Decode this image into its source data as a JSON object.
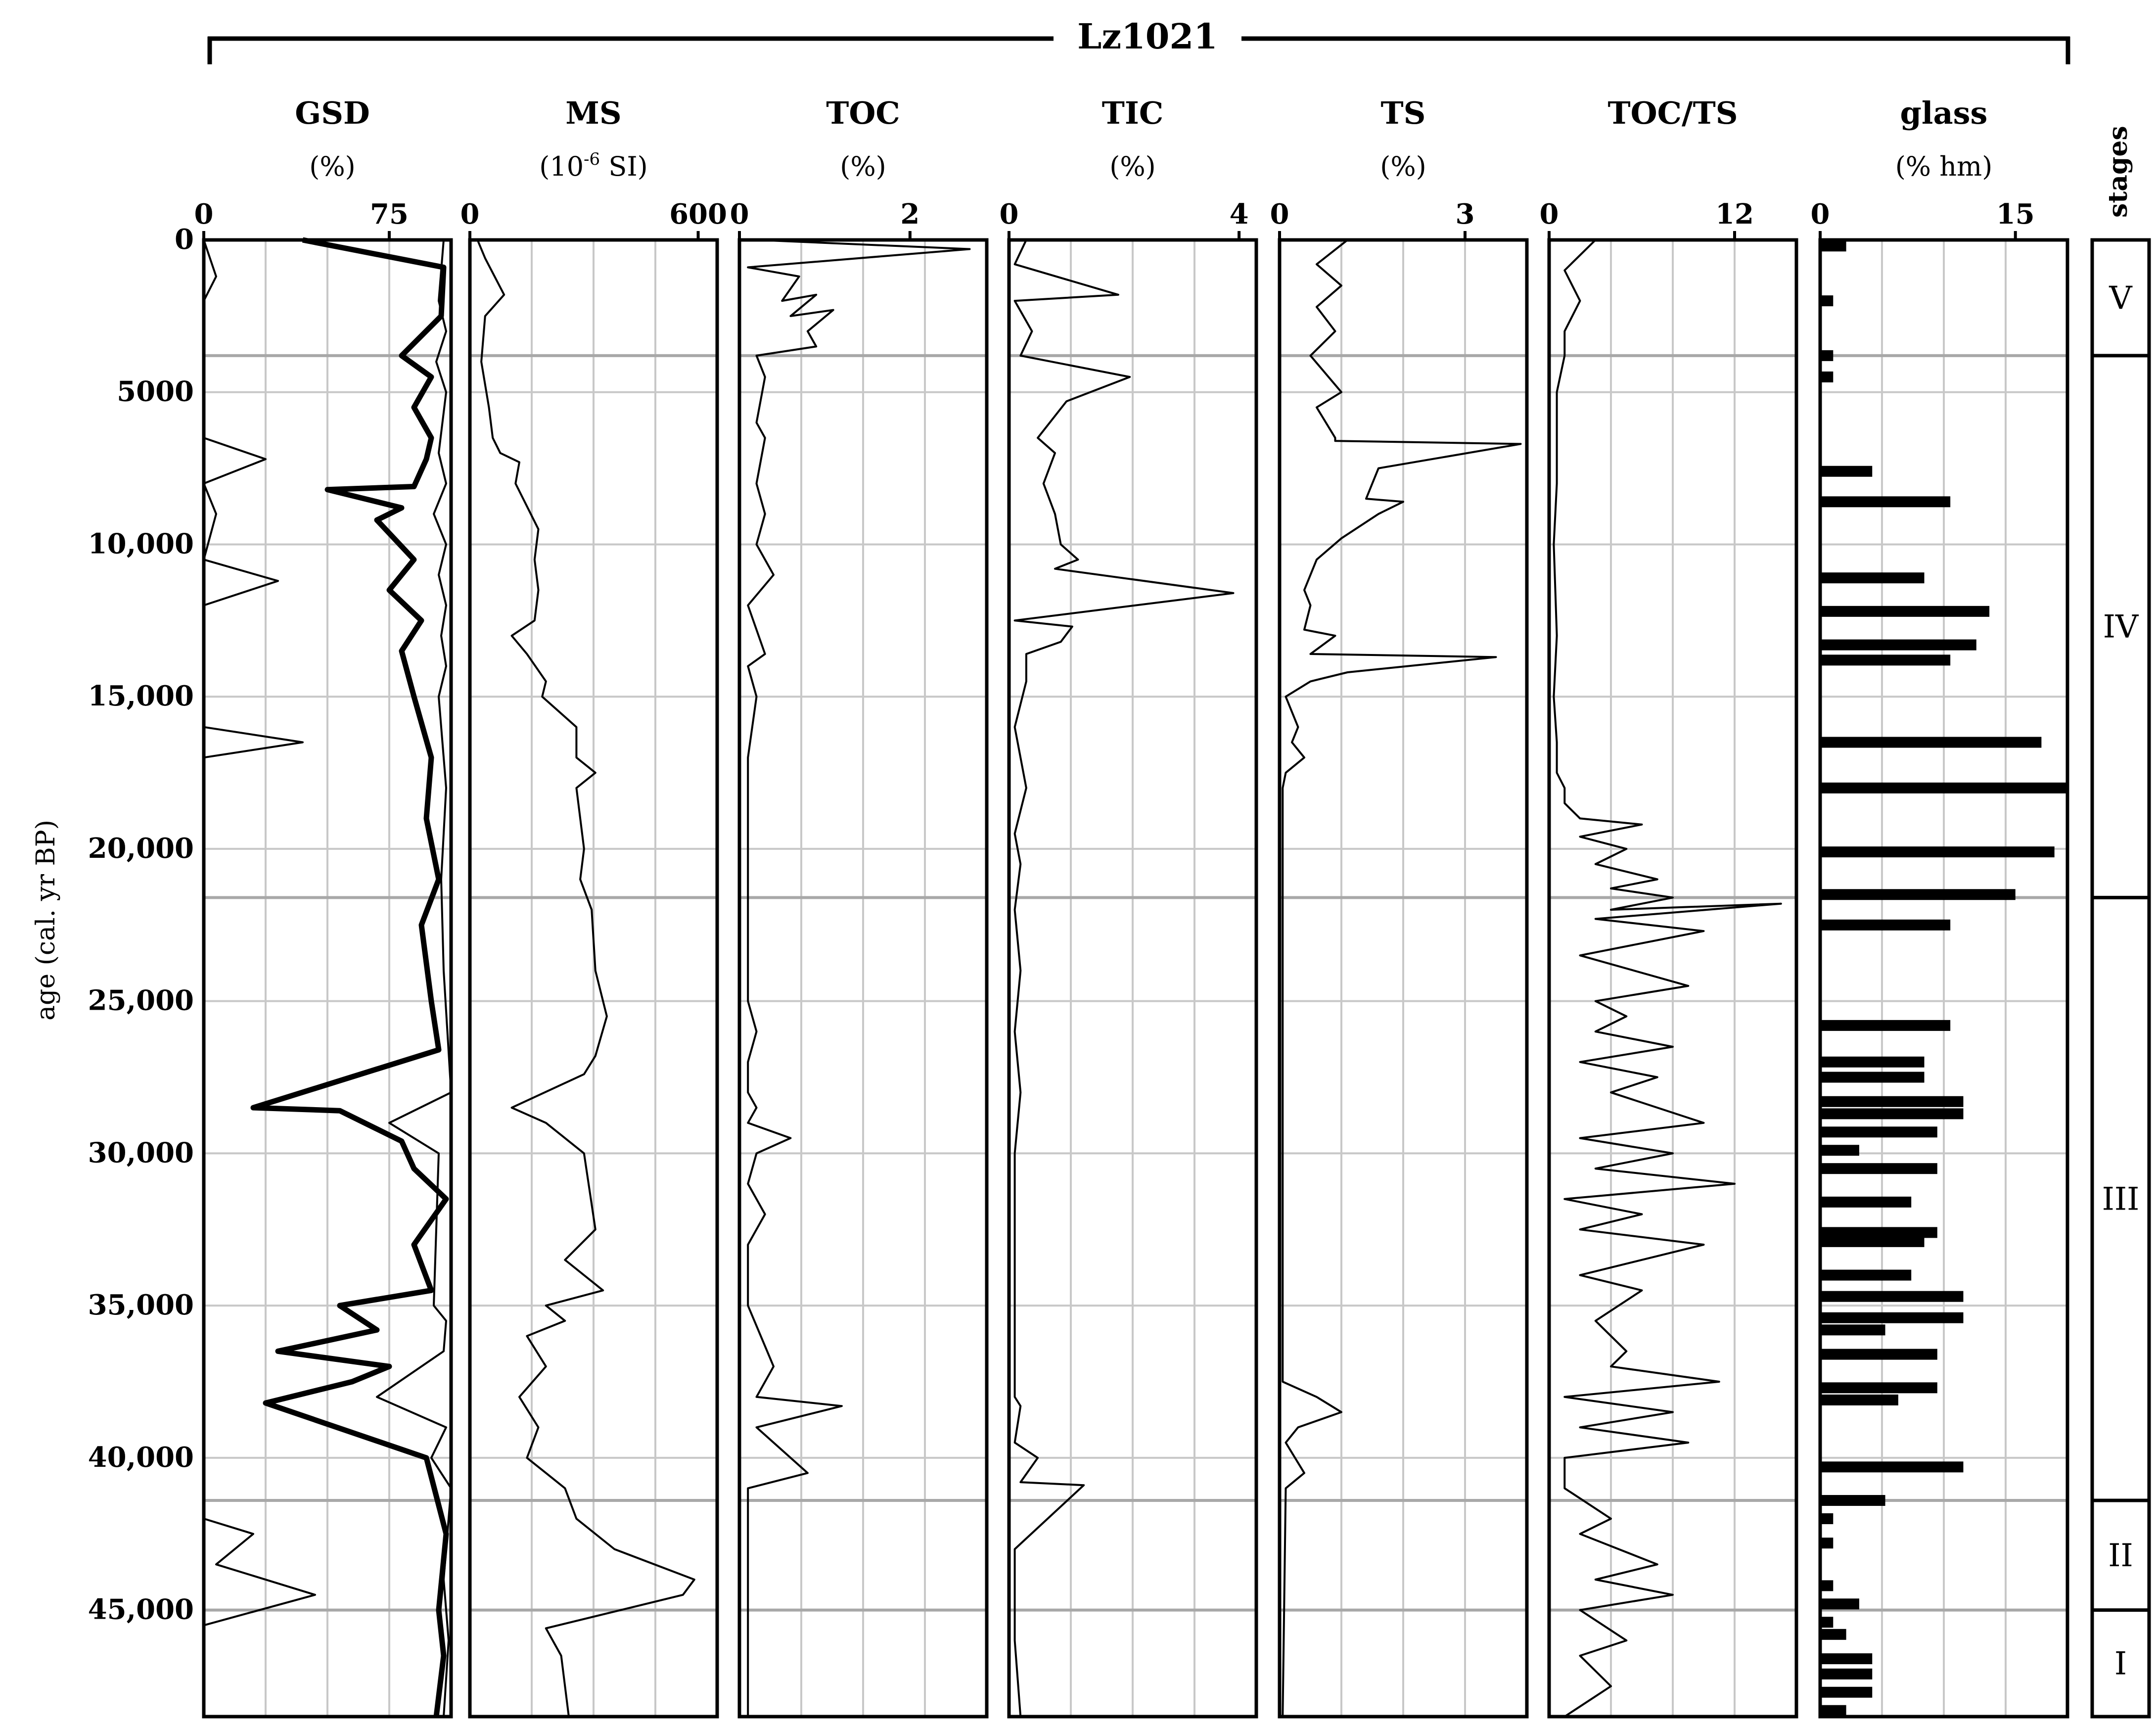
{
  "chart_data": {
    "type": "line",
    "title": "Lz1021",
    "ylabel": "age (cal. yr BP)",
    "y_axis": {
      "range": [
        0,
        48500
      ],
      "ticks": [
        0,
        5000,
        10000,
        15000,
        20000,
        25000,
        30000,
        35000,
        40000,
        45000
      ],
      "tick_labels": [
        "0",
        "5000",
        "10,000",
        "15,000",
        "20,000",
        "25,000",
        "30,000",
        "35,000",
        "40,000",
        "45,000"
      ],
      "direction": "down"
    },
    "stage_boundaries": [
      3800,
      21600,
      41400,
      45000
    ],
    "stages_label": "stages",
    "stages": [
      {
        "label": "V",
        "from": 0,
        "to": 3800
      },
      {
        "label": "IV",
        "from": 3800,
        "to": 21600
      },
      {
        "label": "III",
        "from": 21600,
        "to": 41400
      },
      {
        "label": "II",
        "from": 41400,
        "to": 45000
      },
      {
        "label": "I",
        "from": 45000,
        "to": 48500
      }
    ],
    "panels": [
      {
        "name": "GSD",
        "unit": "(%)",
        "xlim": [
          0,
          100
        ],
        "ticks": [
          0,
          75
        ],
        "tick_labels": [
          "0",
          "75"
        ],
        "series": [
          {
            "style": "thin",
            "x": [
              0,
              5,
              0,
              0,
              0,
              0,
              0,
              25,
              0,
              5,
              0,
              30,
              0,
              0,
              0,
              0,
              0,
              40,
              0,
              0,
              0,
              20,
              5,
              45,
              0
            ],
            "y": [
              0,
              1200,
              2000,
              3000,
              4000,
              5000,
              6500,
              7200,
              8000,
              9000,
              10500,
              11200,
              12000,
              13000,
              14000,
              15000,
              16000,
              16500,
              17000,
              18000,
              42000,
              42500,
              43500,
              44500,
              45500
            ]
          },
          {
            "style": "thick",
            "x": [
              40,
              97,
              96,
              80,
              92,
              85,
              92,
              90,
              85,
              50,
              80,
              70,
              85,
              75,
              88,
              80,
              85,
              92,
              90,
              95,
              88,
              92,
              95,
              20,
              55,
              80,
              85,
              98,
              85,
              92,
              55,
              70,
              30,
              75,
              60,
              25,
              90,
              98,
              95,
              97,
              94
            ],
            "y": [
              0,
              900,
              2500,
              3800,
              4500,
              5500,
              6500,
              7200,
              8100,
              8200,
              8800,
              9200,
              10500,
              11500,
              12500,
              13500,
              15000,
              17000,
              19000,
              21000,
              22500,
              25000,
              26600,
              28500,
              28600,
              29600,
              30500,
              31500,
              33000,
              34500,
              35000,
              35800,
              36500,
              37000,
              37500,
              38200,
              40000,
              42500,
              45000,
              46500,
              48500
            ]
          },
          {
            "style": "thin",
            "x": [
              97,
              95,
              98,
              94,
              98,
              95,
              98,
              93,
              98,
              95,
              98,
              96,
              98,
              95,
              98,
              96,
              97,
              100,
              75,
              95,
              93,
              98,
              97,
              70,
              98,
              92,
              100,
              97,
              99,
              97
            ],
            "y": [
              0,
              2000,
              3000,
              4000,
              5000,
              7000,
              8000,
              9000,
              10000,
              11000,
              12000,
              13000,
              14000,
              15000,
              18000,
              21000,
              24000,
              28000,
              29000,
              30000,
              35000,
              35500,
              36500,
              38000,
              39000,
              40000,
              41000,
              44000,
              46000,
              48500
            ]
          }
        ]
      },
      {
        "name": "MS",
        "unit": "(10-6 SI)",
        "unit_base": "(10",
        "unit_exp": "-6",
        "unit_rest": " SI)",
        "xlim": [
          0,
          650
        ],
        "ticks": [
          0,
          600
        ],
        "tick_labels": [
          "0",
          "600"
        ],
        "series": [
          {
            "style": "thin",
            "x": [
              20,
              40,
              90,
              40,
              30,
              50,
              60,
              80,
              130,
              120,
              140,
              180,
              170,
              180,
              170,
              110,
              150,
              200,
              190,
              280,
              280,
              330,
              280,
              300,
              290,
              320,
              330,
              360,
              330,
              300,
              110,
              200,
              300,
              330,
              250,
              350,
              200,
              250,
              150,
              200,
              130,
              180,
              150,
              200,
              250,
              280,
              380,
              590,
              560,
              200,
              240,
              250,
              260
            ],
            "y": [
              0,
              600,
              1800,
              2500,
              4000,
              5500,
              6500,
              7000,
              7300,
              8000,
              8500,
              9500,
              10500,
              11500,
              12500,
              13000,
              13600,
              14500,
              15000,
              16000,
              17000,
              17500,
              18000,
              20000,
              21000,
              22000,
              24000,
              25500,
              26800,
              27400,
              28500,
              29000,
              30000,
              32500,
              33500,
              34500,
              35000,
              35500,
              36000,
              37000,
              38000,
              39000,
              40000,
              40500,
              41000,
              42000,
              43000,
              44000,
              44500,
              45600,
              46500,
              47500,
              48500
            ]
          }
        ]
      },
      {
        "name": "TOC",
        "unit": "(%)",
        "xlim": [
          0,
          2.9
        ],
        "ticks": [
          0,
          2
        ],
        "tick_labels": [
          "0",
          "2"
        ],
        "series": [
          {
            "style": "thin",
            "x": [
              0.2,
              2.7,
              0.1,
              0.7,
              0.5,
              0.9,
              0.6,
              1.1,
              0.8,
              0.9,
              0.2,
              0.3,
              0.2,
              0.3,
              0.2,
              0.3,
              0.2,
              0.4,
              0.1,
              0.3,
              0.1,
              0.2,
              0.1,
              0.1,
              0.1,
              0.1,
              0.2,
              0.1,
              0.1,
              0.2,
              0.1,
              0.6,
              0.2,
              0.1,
              0.3,
              0.1,
              0.1,
              0.4,
              0.2,
              1.2,
              0.2,
              0.8,
              0.1,
              0.1,
              0.1,
              0.1
            ],
            "y": [
              0,
              300,
              900,
              1200,
              2000,
              1800,
              2500,
              2300,
              3000,
              3500,
              3800,
              4500,
              6000,
              6500,
              8000,
              9000,
              10000,
              11000,
              12000,
              13600,
              14000,
              15000,
              17000,
              20000,
              22000,
              25000,
              26000,
              27000,
              28000,
              28500,
              29000,
              29500,
              30000,
              31000,
              32000,
              33000,
              35000,
              37000,
              38000,
              38300,
              39000,
              40500,
              41000,
              43000,
              45000,
              48500
            ]
          }
        ]
      },
      {
        "name": "TIC",
        "unit": "(%)",
        "xlim": [
          0,
          4.3
        ],
        "ticks": [
          0,
          4
        ],
        "tick_labels": [
          "0",
          "4"
        ],
        "series": [
          {
            "style": "thin",
            "x": [
              0.3,
              0.1,
              1.9,
              0.1,
              0.4,
              0.2,
              2.1,
              1.0,
              0.5,
              0.8,
              0.6,
              0.8,
              0.9,
              1.2,
              0.8,
              3.9,
              0.1,
              1.1,
              0.9,
              0.3,
              0.3,
              0.1,
              0.3,
              0.1,
              0.2,
              0.1,
              0.2,
              0.1,
              0.2,
              0.1,
              0.1,
              0.1,
              0.1,
              0.1,
              0.2,
              0.1,
              0.5,
              0.2,
              1.3,
              0.1,
              0.1,
              0.2
            ],
            "y": [
              0,
              800,
              1800,
              2000,
              3000,
              3800,
              4500,
              5300,
              6500,
              7000,
              8000,
              9000,
              10000,
              10500,
              10800,
              11600,
              12500,
              12700,
              13200,
              13600,
              14500,
              16000,
              18000,
              19500,
              20500,
              22000,
              24000,
              26000,
              28000,
              30000,
              32000,
              34000,
              36000,
              38000,
              38300,
              39500,
              40000,
              40800,
              40900,
              43000,
              46000,
              48500
            ]
          }
        ]
      },
      {
        "name": "TS",
        "unit": "(%)",
        "xlim": [
          0,
          4.0
        ],
        "ticks": [
          0,
          3
        ],
        "tick_labels": [
          "0",
          "3"
        ],
        "series": [
          {
            "style": "thin",
            "x": [
              1.1,
              0.6,
              1.0,
              0.6,
              0.9,
              0.5,
              1.0,
              0.6,
              0.9,
              0.9,
              3.9,
              1.6,
              1.4,
              2.0,
              1.6,
              1.0,
              0.6,
              0.4,
              0.5,
              0.4,
              0.9,
              0.5,
              3.5,
              1.1,
              0.5,
              0.1,
              0.3,
              0.2,
              0.4,
              0.1,
              0.05,
              0.05,
              0.05,
              0.05,
              0.05,
              0.6,
              1.0,
              0.3,
              0.1,
              0.4,
              0.1,
              0.05
            ],
            "y": [
              0,
              800,
              1500,
              2200,
              3000,
              3800,
              5000,
              5500,
              6500,
              6600,
              6700,
              7500,
              8500,
              8600,
              9000,
              9800,
              10500,
              11500,
              12000,
              12800,
              13000,
              13600,
              13700,
              14200,
              14500,
              15000,
              16000,
              16500,
              17000,
              17500,
              18000,
              25000,
              30000,
              35000,
              37500,
              38000,
              38500,
              39000,
              39500,
              40500,
              41000,
              48500
            ]
          }
        ]
      },
      {
        "name": "TOC/TS",
        "unit": "",
        "xlim": [
          0,
          16
        ],
        "ticks": [
          0,
          12
        ],
        "tick_labels": [
          "0",
          "12"
        ],
        "series": [
          {
            "style": "thin",
            "x": [
              3,
              1,
              2,
              1,
              1,
              0.5,
              0.5,
              0.3,
              0.5,
              0.3,
              0.5,
              0.5,
              1,
              1,
              2,
              6,
              2,
              5,
              3,
              7,
              4,
              8,
              4,
              15,
              3,
              10,
              2,
              9,
              3,
              5,
              3,
              8,
              2,
              7,
              4,
              10,
              2,
              8,
              3,
              12,
              1,
              6,
              2,
              10,
              2,
              6,
              3,
              5,
              4,
              11,
              1,
              8,
              2,
              9,
              1,
              1,
              4,
              2,
              7,
              3,
              8,
              2,
              5,
              2,
              4,
              1
            ],
            "y": [
              0,
              1000,
              2000,
              3000,
              3800,
              5000,
              8000,
              10000,
              13000,
              15000,
              16500,
              17500,
              18000,
              18500,
              19000,
              19200,
              19600,
              20000,
              20500,
              21000,
              21300,
              21600,
              22000,
              21800,
              22300,
              22700,
              23500,
              24500,
              25000,
              25500,
              26000,
              26500,
              27000,
              27500,
              28000,
              29000,
              29500,
              30000,
              30500,
              31000,
              31500,
              32000,
              32500,
              33000,
              34000,
              34500,
              35500,
              36500,
              37000,
              37500,
              38000,
              38500,
              39000,
              39500,
              40000,
              41000,
              42000,
              42500,
              43500,
              44000,
              44500,
              45000,
              46000,
              46500,
              47500,
              48500
            ]
          }
        ]
      },
      {
        "name": "glass",
        "unit": "(% hm)",
        "xlim": [
          0,
          19
        ],
        "ticks": [
          0,
          15
        ],
        "tick_labels": [
          "0",
          "15"
        ],
        "bars": {
          "y": [
            200,
            2000,
            3800,
            4500,
            7600,
            8600,
            11100,
            12200,
            13300,
            13800,
            16500,
            18000,
            20100,
            21500,
            22500,
            25800,
            27000,
            27500,
            28300,
            28700,
            29300,
            29900,
            30500,
            31600,
            32600,
            32900,
            34000,
            34700,
            35400,
            35800,
            36600,
            37700,
            38100,
            40300,
            41400,
            42000,
            42800,
            44200,
            44800,
            45400,
            45800,
            46600,
            47100,
            47700,
            48300
          ],
          "values": [
            2,
            1,
            1,
            1,
            4,
            10,
            8,
            13,
            12,
            10,
            17,
            19,
            18,
            15,
            10,
            10,
            8,
            8,
            11,
            11,
            9,
            3,
            9,
            7,
            9,
            8,
            7,
            11,
            11,
            5,
            9,
            9,
            6,
            11,
            5,
            1,
            1,
            1,
            3,
            1,
            2,
            4,
            4,
            4,
            2
          ]
        }
      }
    ]
  }
}
